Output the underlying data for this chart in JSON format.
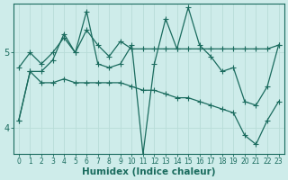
{
  "xlabel": "Humidex (Indice chaleur)",
  "background_color": "#ceecea",
  "line_color": "#1a6b5e",
  "grid_color": "#b8dcd8",
  "xlim": [
    -0.5,
    23.5
  ],
  "ylim": [
    3.65,
    5.65
  ],
  "yticks": [
    4,
    5
  ],
  "xticks": [
    0,
    1,
    2,
    3,
    4,
    5,
    6,
    7,
    8,
    9,
    10,
    11,
    12,
    13,
    14,
    15,
    16,
    17,
    18,
    19,
    20,
    21,
    22,
    23
  ],
  "series1_x": [
    0,
    1,
    2,
    3,
    4,
    5,
    6,
    7,
    8,
    9,
    10,
    11,
    12,
    13,
    14,
    15,
    16,
    17,
    18,
    19,
    20,
    21,
    22,
    23
  ],
  "series1_y": [
    4.8,
    5.0,
    4.85,
    5.0,
    5.2,
    5.0,
    5.3,
    5.1,
    4.95,
    5.15,
    5.05,
    5.05,
    5.05,
    5.05,
    5.05,
    5.05,
    5.05,
    5.05,
    5.05,
    5.05,
    5.05,
    5.05,
    5.05,
    5.1
  ],
  "series2_x": [
    0,
    1,
    2,
    3,
    4,
    5,
    6,
    7,
    8,
    9,
    10,
    11,
    12,
    13,
    14,
    15,
    16,
    17,
    18,
    19,
    20,
    21,
    22,
    23
  ],
  "series2_y": [
    4.1,
    4.75,
    4.75,
    4.9,
    5.25,
    5.0,
    5.55,
    4.85,
    4.8,
    4.85,
    5.1,
    3.65,
    4.85,
    5.45,
    5.05,
    5.6,
    5.1,
    4.95,
    4.75,
    4.8,
    4.35,
    4.3,
    4.55,
    5.1
  ],
  "series3_x": [
    0,
    1,
    2,
    3,
    4,
    5,
    6,
    7,
    8,
    9,
    10,
    11,
    12,
    13,
    14,
    15,
    16,
    17,
    18,
    19,
    20,
    21,
    22,
    23
  ],
  "series3_y": [
    4.1,
    4.75,
    4.6,
    4.6,
    4.65,
    4.6,
    4.6,
    4.6,
    4.6,
    4.6,
    4.55,
    4.5,
    4.5,
    4.45,
    4.4,
    4.4,
    4.35,
    4.3,
    4.25,
    4.2,
    3.9,
    3.78,
    4.1,
    4.35
  ],
  "marker": "+",
  "markersize": 4,
  "linewidth": 0.9,
  "tick_fontsize": 5.5,
  "xlabel_fontsize": 7.5
}
